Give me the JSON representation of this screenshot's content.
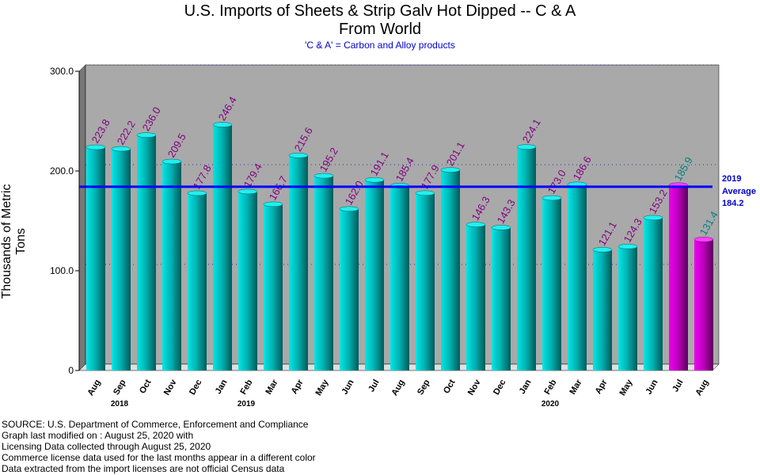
{
  "chart_data": {
    "type": "bar",
    "title": "U.S. Imports of Sheets & Strip Galv Hot Dipped -- C & A",
    "title2": "From World",
    "subtitle": "'C & A' = Carbon and Alloy products",
    "ylabel": "Thousands of Metric Tons",
    "ylim": [
      0,
      300
    ],
    "yticks": [
      "0",
      "100.0",
      "200.0",
      "300.0"
    ],
    "grid": true,
    "categories": [
      "Aug",
      "Sep",
      "Oct",
      "Nov",
      "Dec",
      "Jan",
      "Feb",
      "Mar",
      "Apr",
      "May",
      "Jun",
      "Jul",
      "Aug",
      "Sep",
      "Oct",
      "Nov",
      "Dec",
      "Jan",
      "Feb",
      "Mar",
      "Apr",
      "May",
      "Jun",
      "Jul",
      "Aug"
    ],
    "values": [
      223.8,
      222.2,
      236.0,
      209.5,
      177.8,
      246.4,
      179.4,
      166.7,
      215.6,
      195.2,
      162.0,
      191.1,
      185.4,
      177.9,
      201.1,
      146.3,
      143.3,
      224.1,
      173.0,
      186.6,
      121.1,
      124.3,
      153.2,
      185.9,
      131.4
    ],
    "value_labels": [
      "223.8",
      "222.2",
      "236.0",
      "209.5",
      "177.8",
      "246.4",
      "179.4",
      "166.7",
      "215.6",
      "195.2",
      "162.0",
      "191.1",
      "185.4",
      "177.9",
      "201.1",
      "146.3",
      "143.3",
      "224.1",
      "173.0",
      "186.6",
      "121.1",
      "124.3",
      "153.2",
      "185.9",
      "131.4"
    ],
    "license_flags": [
      false,
      false,
      false,
      false,
      false,
      false,
      false,
      false,
      false,
      false,
      false,
      false,
      false,
      false,
      false,
      false,
      false,
      false,
      false,
      false,
      false,
      false,
      false,
      true,
      true
    ],
    "years": [
      {
        "label": "2018",
        "at_index": 1
      },
      {
        "label": "2019",
        "at_index": 6
      },
      {
        "label": "2020",
        "at_index": 18
      }
    ],
    "average": {
      "value": 184.2,
      "line1": "2019",
      "line2": "Average",
      "line3": "184.2"
    }
  },
  "colors": {
    "plot_bg": "#a9a9a9",
    "bar_census": "#00c8c8",
    "bar_license": "#cc00cc",
    "label_census": "#800080",
    "label_license": "#008080",
    "average_line": "#0000ff",
    "grid": "#3333aa"
  },
  "footer": {
    "line1": "SOURCE: U.S. Department of Commerce, Enforcement and Compliance",
    "line2": "Graph last modified on : August 25, 2020    with",
    "line3": "Licensing Data collected through August 25, 2020",
    "line4": "Commerce license data used for the last months appear in a different color",
    "line5": "Data extracted from the import licenses are not official Census data"
  }
}
